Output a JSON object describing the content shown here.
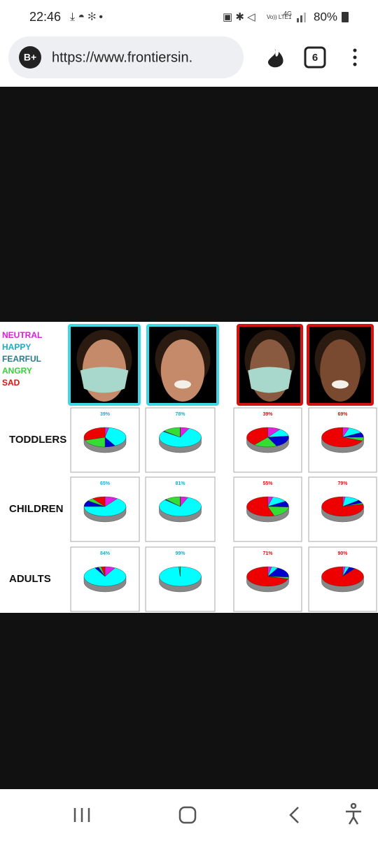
{
  "status_bar": {
    "time": "22:46",
    "volte": "Vo)) LTE1",
    "network": "4G",
    "battery": "80%"
  },
  "browser": {
    "url": "https://www.frontiersin.",
    "tab_count": "6"
  },
  "figure": {
    "legend": [
      {
        "label": "NEUTRAL",
        "color": "#d81ed8",
        "slice_color": "#e020e0"
      },
      {
        "label": "HAPPY",
        "color": "#1aaccc",
        "slice_color": "#00ffff"
      },
      {
        "label": "FEARFUL",
        "color": "#2a7c8c",
        "slice_color": "#0000cc"
      },
      {
        "label": "ANGRY",
        "color": "#3ccf3c",
        "slice_color": "#33dd33"
      },
      {
        "label": "SAD",
        "color": "#e01010",
        "slice_color": "#ee0000"
      }
    ],
    "rows": [
      {
        "label": "TODDLERS",
        "pies": [
          {
            "label": "39%",
            "values": [
              3,
              39,
              8,
              20,
              30
            ]
          },
          {
            "label": "78%",
            "values": [
              7,
              78,
              1,
              14,
              0
            ]
          },
          {
            "label": "39%",
            "values": [
              10,
              13,
              20,
              18,
              39
            ]
          },
          {
            "label": "69%",
            "values": [
              5,
              12,
              8,
              6,
              69
            ]
          }
        ]
      },
      {
        "label": "CHILDREN",
        "pies": [
          {
            "label": "65%",
            "values": [
              10,
              65,
              10,
              5,
              10
            ]
          },
          {
            "label": "81%",
            "values": [
              6,
              81,
              1,
              12,
              0
            ]
          },
          {
            "label": "55%",
            "values": [
              4,
              12,
              10,
              19,
              55
            ]
          },
          {
            "label": "79%",
            "values": [
              2,
              12,
              5,
              2,
              79
            ]
          }
        ]
      },
      {
        "label": "ADULTS",
        "pies": [
          {
            "label": "84%",
            "values": [
              8,
              84,
              3,
              2,
              3
            ]
          },
          {
            "label": "99%",
            "values": [
              0,
              99,
              0,
              1,
              0
            ]
          },
          {
            "label": "71%",
            "values": [
              3,
              5,
              18,
              3,
              71
            ]
          },
          {
            "label": "90%",
            "values": [
              2,
              3,
              5,
              0,
              90
            ]
          }
        ]
      }
    ]
  }
}
